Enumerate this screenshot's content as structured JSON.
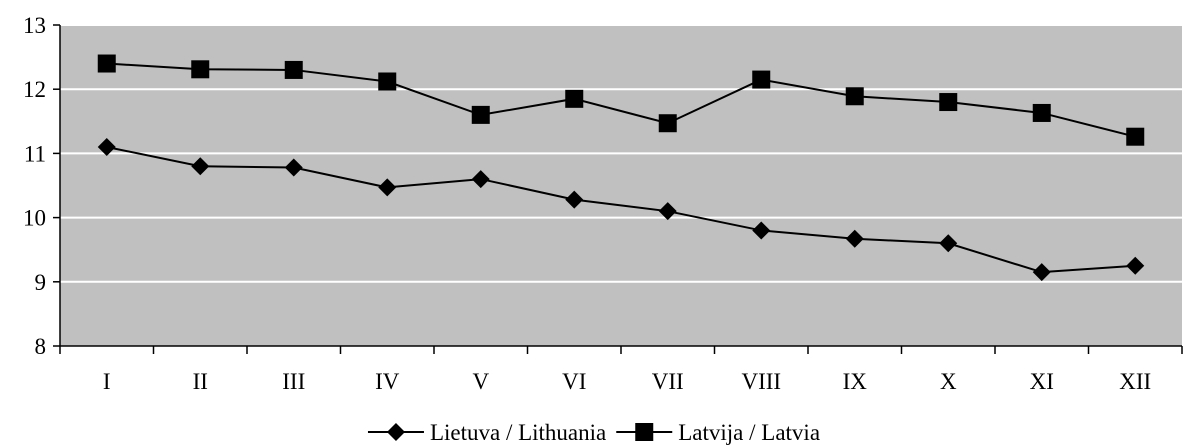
{
  "chart_data": {
    "type": "line",
    "categories": [
      "I",
      "II",
      "III",
      "IV",
      "V",
      "VI",
      "VII",
      "VIII",
      "IX",
      "X",
      "XI",
      "XII"
    ],
    "series": [
      {
        "name": "Lietuva / Lithuania",
        "marker": "diamond",
        "values": [
          11.1,
          10.8,
          10.78,
          10.47,
          10.6,
          10.28,
          10.1,
          9.8,
          9.67,
          9.6,
          9.15,
          9.25
        ]
      },
      {
        "name": "Latvija / Latvia",
        "marker": "square",
        "values": [
          12.4,
          12.31,
          12.3,
          12.12,
          11.6,
          11.85,
          11.47,
          12.15,
          11.89,
          11.8,
          11.63,
          11.26
        ]
      }
    ],
    "ylim": [
      8,
      13
    ],
    "y_ticks": [
      8,
      9,
      10,
      11,
      12,
      13
    ],
    "grid": true,
    "legend_position": "bottom",
    "colors": {
      "plot_background": "#c0c0c0",
      "gridline": "#ffffff",
      "series_line": "#000000",
      "axis": "#000000"
    }
  }
}
